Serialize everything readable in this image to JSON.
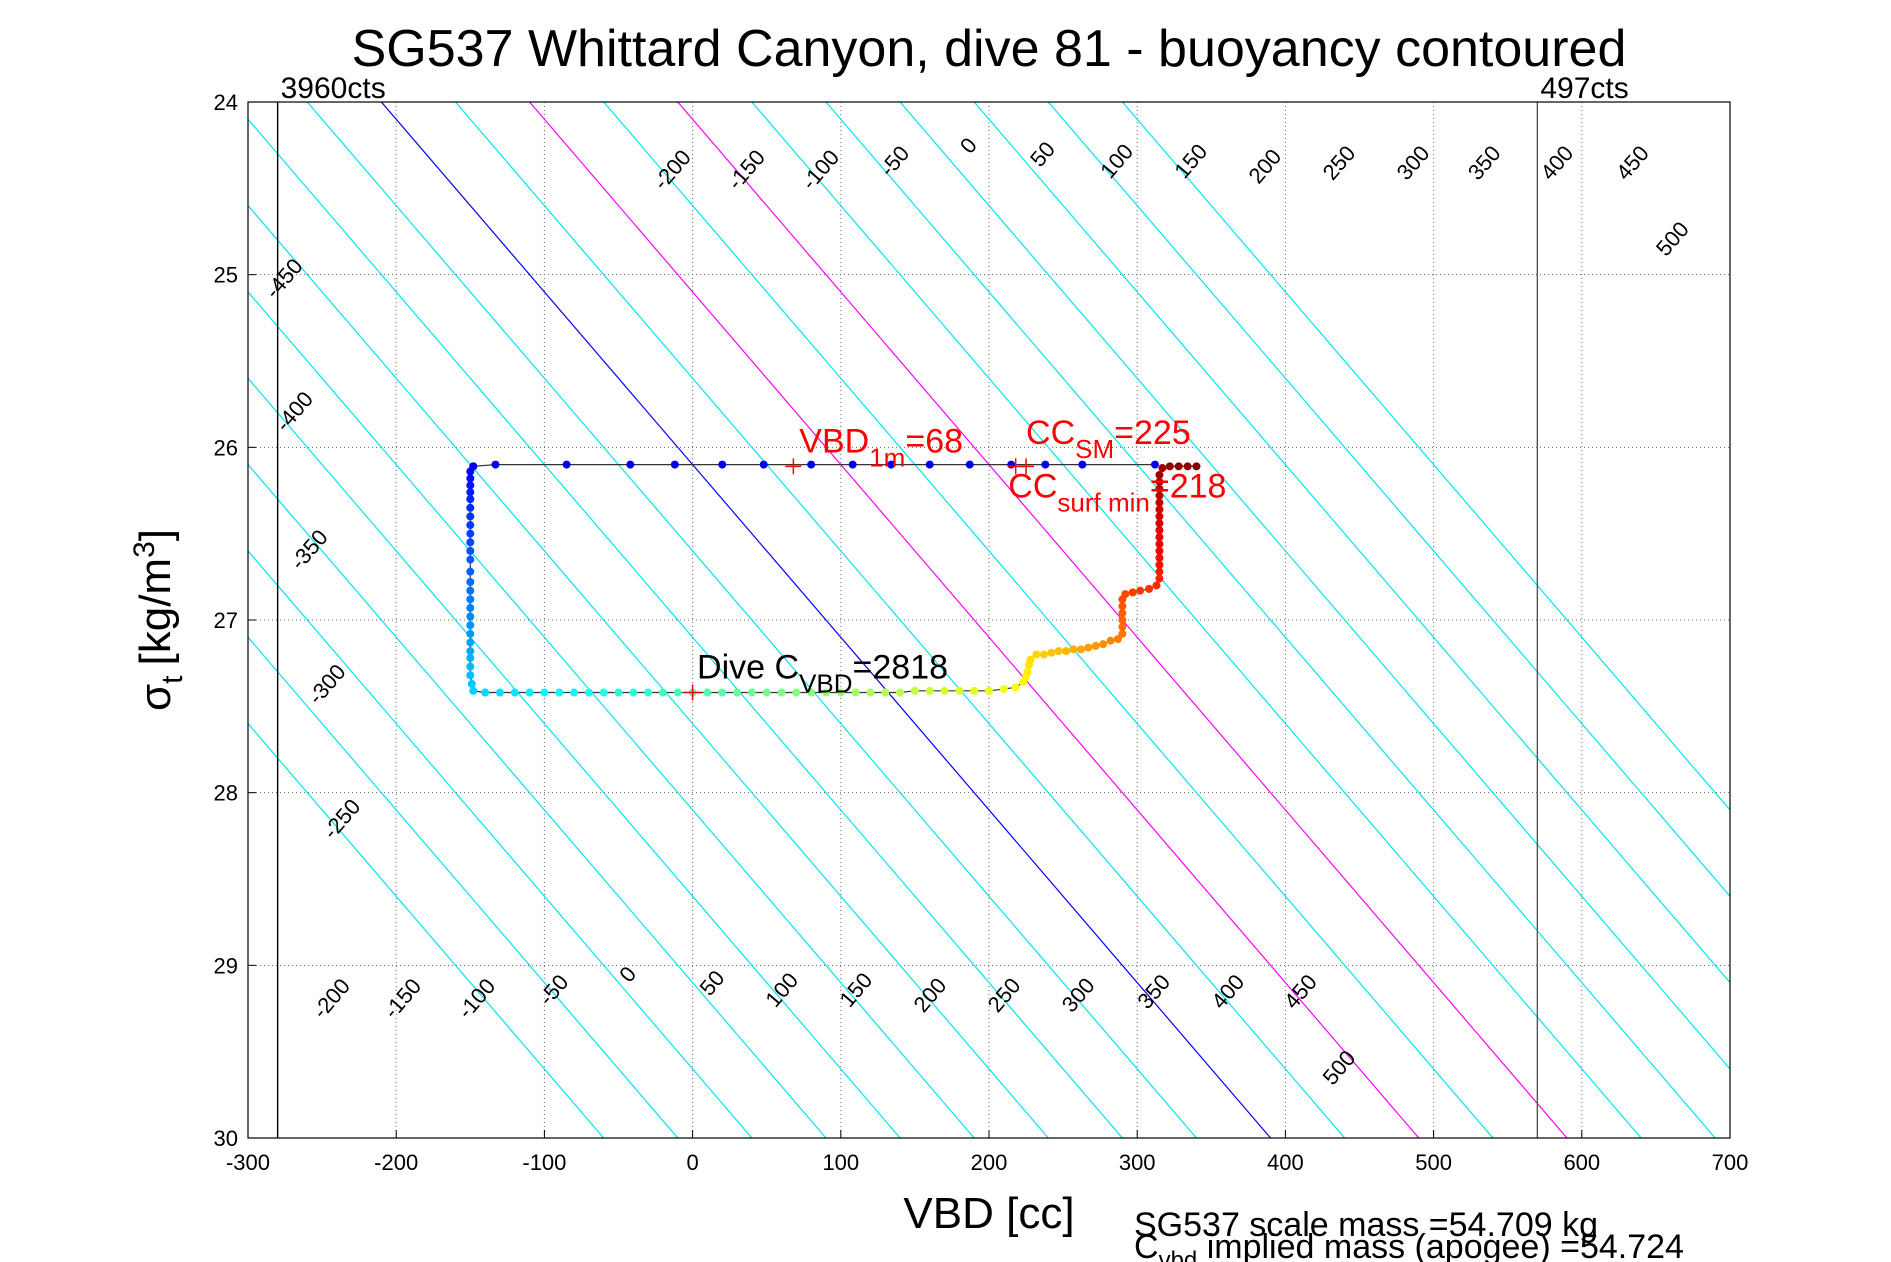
{
  "chart_data": {
    "type": "scatter",
    "title": "SG537 Whittard Canyon, dive 81 - buoyancy contoured",
    "xlabel": "VBD [cc]",
    "ylabel": "σ",
    "ylabel_sub": "t",
    "ylabel_unit_a": "[kg/m",
    "ylabel_unit_sup": "3",
    "ylabel_unit_b": "]",
    "xlim": [
      -300,
      700
    ],
    "ylim": [
      30,
      24
    ],
    "xticks": [
      -300,
      -200,
      -100,
      0,
      100,
      200,
      300,
      400,
      500,
      600,
      700
    ],
    "yticks": [
      24,
      25,
      26,
      27,
      28,
      29,
      30
    ],
    "grid": true,
    "vlines": [
      {
        "x": -280,
        "label": "3960cts",
        "color": "#000000"
      },
      {
        "x": 570,
        "label": "497cts",
        "color": "#555555"
      }
    ],
    "contours": {
      "levels": [
        -450,
        -400,
        -350,
        -300,
        -250,
        -200,
        -150,
        -100,
        -50,
        0,
        50,
        100,
        150,
        200,
        250,
        300,
        350,
        400,
        450,
        500
      ],
      "line_color": "#00e5ee",
      "zero_color": "#0000ff",
      "highlight_color": "#ff00ff",
      "highlight_levels": [
        100,
        200
      ],
      "top_labels": [
        {
          "v": -200,
          "x": -10,
          "y": 24.42
        },
        {
          "v": -150,
          "x": 40,
          "y": 24.42
        },
        {
          "v": -100,
          "x": 90,
          "y": 24.42
        },
        {
          "v": -50,
          "x": 140,
          "y": 24.37
        },
        {
          "v": 0,
          "x": 190,
          "y": 24.28
        },
        {
          "v": 50,
          "x": 240,
          "y": 24.33
        },
        {
          "v": 100,
          "x": 290,
          "y": 24.37
        },
        {
          "v": 150,
          "x": 340,
          "y": 24.37
        },
        {
          "v": 200,
          "x": 390,
          "y": 24.4
        },
        {
          "v": 250,
          "x": 440,
          "y": 24.38
        },
        {
          "v": 300,
          "x": 490,
          "y": 24.38
        },
        {
          "v": 350,
          "x": 538,
          "y": 24.38
        },
        {
          "v": 400,
          "x": 587,
          "y": 24.38
        },
        {
          "v": 450,
          "x": 638,
          "y": 24.38
        },
        {
          "v": 500,
          "x": 665,
          "y": 24.82
        }
      ],
      "left_labels": [
        {
          "v": -450,
          "x": -272,
          "y": 25.05
        },
        {
          "v": -400,
          "x": -265,
          "y": 25.82
        },
        {
          "v": -350,
          "x": -255,
          "y": 26.62
        },
        {
          "v": -300,
          "x": -243,
          "y": 27.4
        },
        {
          "v": -250,
          "x": -233,
          "y": 28.18
        }
      ],
      "bottom_labels": [
        {
          "v": -200,
          "x": -240,
          "y": 29.22
        },
        {
          "v": -150,
          "x": -192,
          "y": 29.22
        },
        {
          "v": -100,
          "x": -142,
          "y": 29.22
        },
        {
          "v": -50,
          "x": -90,
          "y": 29.17
        },
        {
          "v": 0,
          "x": -40,
          "y": 29.08
        },
        {
          "v": 50,
          "x": 17,
          "y": 29.13
        },
        {
          "v": 100,
          "x": 64,
          "y": 29.17
        },
        {
          "v": 150,
          "x": 114,
          "y": 29.17
        },
        {
          "v": 200,
          "x": 164,
          "y": 29.2
        },
        {
          "v": 250,
          "x": 214,
          "y": 29.2
        },
        {
          "v": 300,
          "x": 264,
          "y": 29.2
        },
        {
          "v": 350,
          "x": 315,
          "y": 29.18
        },
        {
          "v": 400,
          "x": 365,
          "y": 29.18
        },
        {
          "v": 450,
          "x": 414,
          "y": 29.18
        },
        {
          "v": 500,
          "x": 440,
          "y": 29.62
        }
      ]
    },
    "series": [
      {
        "color_scale": "jet",
        "points": [
          [
            -148,
            26.11
          ],
          [
            -150,
            26.14
          ],
          [
            -150,
            26.18
          ],
          [
            -150,
            26.22
          ],
          [
            -150,
            26.26
          ],
          [
            -150,
            26.3
          ],
          [
            -150,
            26.35
          ],
          [
            -150,
            26.4
          ],
          [
            -150,
            26.45
          ],
          [
            -150,
            26.5
          ],
          [
            -150,
            26.55
          ],
          [
            -150,
            26.6
          ],
          [
            -150,
            26.65
          ],
          [
            -150,
            26.72
          ],
          [
            -150,
            26.78
          ],
          [
            -150,
            26.83
          ],
          [
            -150,
            26.88
          ],
          [
            -150,
            26.93
          ],
          [
            -150,
            26.98
          ],
          [
            -150,
            27.03
          ],
          [
            -150,
            27.08
          ],
          [
            -150,
            27.13
          ],
          [
            -150,
            27.18
          ],
          [
            -150,
            27.22
          ],
          [
            -150,
            27.27
          ],
          [
            -150,
            27.32
          ],
          [
            -149,
            27.37
          ],
          [
            -148,
            27.41
          ],
          [
            -140,
            27.42
          ],
          [
            -130,
            27.42
          ],
          [
            -120,
            27.42
          ],
          [
            -110,
            27.42
          ],
          [
            -100,
            27.42
          ],
          [
            -90,
            27.42
          ],
          [
            -80,
            27.42
          ],
          [
            -70,
            27.42
          ],
          [
            -60,
            27.42
          ],
          [
            -50,
            27.42
          ],
          [
            -40,
            27.42
          ],
          [
            -30,
            27.42
          ],
          [
            -20,
            27.42
          ],
          [
            -10,
            27.42
          ],
          [
            0,
            27.42
          ],
          [
            10,
            27.42
          ],
          [
            20,
            27.42
          ],
          [
            30,
            27.42
          ],
          [
            40,
            27.42
          ],
          [
            50,
            27.42
          ],
          [
            60,
            27.42
          ],
          [
            70,
            27.42
          ],
          [
            80,
            27.42
          ],
          [
            90,
            27.42
          ],
          [
            100,
            27.42
          ],
          [
            110,
            27.42
          ],
          [
            120,
            27.42
          ],
          [
            130,
            27.42
          ],
          [
            140,
            27.42
          ],
          [
            150,
            27.41
          ],
          [
            160,
            27.41
          ],
          [
            170,
            27.41
          ],
          [
            180,
            27.41
          ],
          [
            190,
            27.41
          ],
          [
            200,
            27.41
          ],
          [
            210,
            27.4
          ],
          [
            218,
            27.39
          ],
          [
            223,
            27.36
          ],
          [
            225,
            27.33
          ],
          [
            226,
            27.3
          ],
          [
            227,
            27.26
          ],
          [
            228,
            27.23
          ],
          [
            232,
            27.2
          ],
          [
            237,
            27.2
          ],
          [
            242,
            27.19
          ],
          [
            247,
            27.18
          ],
          [
            252,
            27.18
          ],
          [
            257,
            27.17
          ],
          [
            262,
            27.17
          ],
          [
            267,
            27.16
          ],
          [
            272,
            27.15
          ],
          [
            277,
            27.14
          ],
          [
            282,
            27.12
          ],
          [
            287,
            27.11
          ],
          [
            290,
            27.08
          ],
          [
            290,
            27.04
          ],
          [
            290,
            27.0
          ],
          [
            290,
            26.96
          ],
          [
            290,
            26.92
          ],
          [
            290,
            26.88
          ],
          [
            292,
            26.85
          ],
          [
            297,
            26.84
          ],
          [
            302,
            26.83
          ],
          [
            308,
            26.82
          ],
          [
            313,
            26.8
          ],
          [
            315,
            26.76
          ],
          [
            315,
            26.72
          ],
          [
            315,
            26.68
          ],
          [
            315,
            26.64
          ],
          [
            315,
            26.6
          ],
          [
            315,
            26.56
          ],
          [
            315,
            26.52
          ],
          [
            315,
            26.48
          ],
          [
            315,
            26.44
          ],
          [
            315,
            26.4
          ],
          [
            315,
            26.36
          ],
          [
            315,
            26.32
          ],
          [
            315,
            26.28
          ],
          [
            315,
            26.24
          ],
          [
            315,
            26.2
          ],
          [
            315,
            26.16
          ],
          [
            317,
            26.12
          ],
          [
            322,
            26.11
          ],
          [
            328,
            26.11
          ],
          [
            334,
            26.11
          ],
          [
            340,
            26.11
          ]
        ],
        "surface_points": [
          [
            -148,
            26.11
          ],
          [
            -133,
            26.1
          ],
          [
            -85,
            26.1
          ],
          [
            -42,
            26.1
          ],
          [
            -12,
            26.1
          ],
          [
            20,
            26.1
          ],
          [
            48,
            26.1
          ],
          [
            80,
            26.1
          ],
          [
            108,
            26.1
          ],
          [
            134,
            26.1
          ],
          [
            160,
            26.1
          ],
          [
            187,
            26.1
          ],
          [
            215,
            26.1
          ],
          [
            238,
            26.1
          ],
          [
            263,
            26.1
          ],
          [
            312,
            26.1
          ]
        ],
        "surface_color": "#0000ee",
        "line_color": "#333333"
      }
    ],
    "markers": [
      {
        "x": 68,
        "y": 26.11,
        "color": "#ff0000"
      },
      {
        "x": 225,
        "y": 26.11,
        "color": "#ff0000"
      },
      {
        "x": 218,
        "y": 26.11,
        "color": "#ff0000"
      },
      {
        "x": 0,
        "y": 27.42,
        "color": "#ff0000"
      }
    ],
    "annotations": {
      "vbd1m": {
        "main": "VBD",
        "sub": "1m",
        "tail": "=68",
        "x": 72,
        "y": 26.03,
        "color": "#ff0000"
      },
      "ccsm": {
        "main": "CC",
        "sub": "SM",
        "tail": "=225",
        "x": 225,
        "y": 25.98,
        "color": "#ff0000"
      },
      "ccsurf": {
        "main": "CC",
        "sub": "surf min",
        "tail": "=218",
        "x": 213,
        "y": 26.29,
        "color": "#ff0000"
      },
      "divec": {
        "main": "Dive C",
        "sub": "VBD",
        "tail": "=2818",
        "x": 3,
        "y": 27.34,
        "color": "#000000"
      }
    },
    "footer": {
      "scale_mass": "SG537 scale mass =54.709 kg",
      "implied_main": "C",
      "implied_sub": "vbd",
      "implied_tail": " implied mass (apogee) =54.724"
    }
  }
}
